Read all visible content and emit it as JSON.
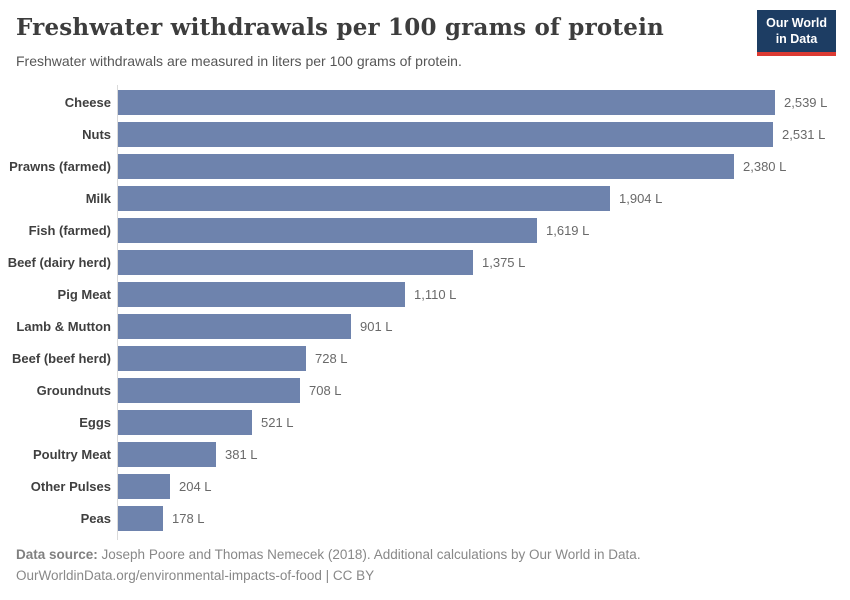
{
  "header": {
    "title": "Freshwater withdrawals per 100 grams of protein",
    "subtitle": "Freshwater withdrawals are measured in liters per 100 grams of protein.",
    "logo": {
      "line1": "Our World",
      "line2": "in Data",
      "bg_color": "#1d3d63",
      "accent_color": "#dc3a32"
    }
  },
  "chart_data": {
    "type": "bar",
    "orientation": "horizontal",
    "title": "Freshwater withdrawals per 100 grams of protein",
    "xlabel": "",
    "ylabel": "",
    "unit": "liters per 100 grams of protein",
    "xlim": [
      0,
      2539
    ],
    "grid": false,
    "legend": false,
    "bar_color": "#6e83ad",
    "categories": [
      "Cheese",
      "Nuts",
      "Prawns (farmed)",
      "Milk",
      "Fish (farmed)",
      "Beef (dairy herd)",
      "Pig Meat",
      "Lamb & Mutton",
      "Beef (beef herd)",
      "Groundnuts",
      "Eggs",
      "Poultry Meat",
      "Other Pulses",
      "Peas"
    ],
    "values": [
      2539,
      2531,
      2380,
      1904,
      1619,
      1375,
      1110,
      901,
      728,
      708,
      521,
      381,
      204,
      178
    ],
    "value_labels": [
      "2,539 L",
      "2,531 L",
      "2,380 L",
      "1,904 L",
      "1,619 L",
      "1,375 L",
      "1,110 L",
      "901 L",
      "728 L",
      "708 L",
      "521 L",
      "381 L",
      "204 L",
      "178 L"
    ]
  },
  "footer": {
    "source_label": "Data source:",
    "source_text": " Joseph Poore and Thomas Nemecek (2018). Additional calculations by Our World in Data.",
    "url_line": "OurWorldinData.org/environmental-impacts-of-food | CC BY"
  },
  "colors": {
    "bar": "#6e83ad",
    "axis_line": "#dadada",
    "title_text": "#3d3d3d",
    "subtitle_text": "#565656",
    "category_label": "#3f3f3f",
    "value_label": "#696969",
    "footer_text": "#888888"
  }
}
